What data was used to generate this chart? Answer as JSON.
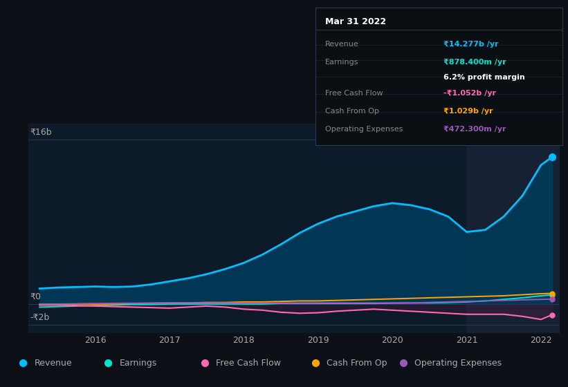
{
  "bg_color": "#0d1117",
  "chart_bg": "#0d1a2a",
  "text_color": "#aaaaaa",
  "years": [
    2015.25,
    2015.5,
    2015.75,
    2016.0,
    2016.25,
    2016.5,
    2016.75,
    2017.0,
    2017.25,
    2017.5,
    2017.75,
    2018.0,
    2018.25,
    2018.5,
    2018.75,
    2019.0,
    2019.25,
    2019.5,
    2019.75,
    2020.0,
    2020.25,
    2020.5,
    2020.75,
    2021.0,
    2021.25,
    2021.5,
    2021.75,
    2022.0,
    2022.15
  ],
  "revenue": [
    1.5,
    1.6,
    1.65,
    1.7,
    1.65,
    1.7,
    1.9,
    2.2,
    2.5,
    2.9,
    3.4,
    4.0,
    4.8,
    5.8,
    6.9,
    7.8,
    8.5,
    9.0,
    9.5,
    9.8,
    9.6,
    9.2,
    8.5,
    7.0,
    7.2,
    8.5,
    10.5,
    13.5,
    14.277
  ],
  "earnings": [
    -0.3,
    -0.25,
    -0.2,
    -0.15,
    -0.1,
    -0.05,
    -0.05,
    0.0,
    0.0,
    0.0,
    0.0,
    0.0,
    0.0,
    0.05,
    0.05,
    0.05,
    0.05,
    0.05,
    0.05,
    0.08,
    0.1,
    0.1,
    0.15,
    0.2,
    0.3,
    0.45,
    0.6,
    0.8,
    0.878
  ],
  "free_cash_flow": [
    -0.1,
    -0.1,
    -0.15,
    -0.2,
    -0.25,
    -0.3,
    -0.35,
    -0.4,
    -0.3,
    -0.2,
    -0.3,
    -0.5,
    -0.6,
    -0.8,
    -0.9,
    -0.85,
    -0.7,
    -0.6,
    -0.5,
    -0.6,
    -0.7,
    -0.8,
    -0.9,
    -1.0,
    -1.0,
    -1.0,
    -1.2,
    -1.5,
    -1.052
  ],
  "cash_from_op": [
    -0.05,
    -0.02,
    0.0,
    0.0,
    0.02,
    0.05,
    0.08,
    0.1,
    0.1,
    0.15,
    0.15,
    0.2,
    0.2,
    0.25,
    0.3,
    0.3,
    0.35,
    0.4,
    0.45,
    0.5,
    0.55,
    0.6,
    0.65,
    0.7,
    0.75,
    0.8,
    0.9,
    1.0,
    1.029
  ],
  "operating_expenses": [
    0.0,
    0.0,
    0.02,
    0.05,
    0.07,
    0.08,
    0.09,
    0.1,
    0.1,
    0.1,
    0.1,
    0.1,
    0.1,
    0.1,
    0.1,
    0.1,
    0.1,
    0.1,
    0.1,
    0.1,
    0.1,
    0.15,
    0.2,
    0.25,
    0.3,
    0.35,
    0.4,
    0.45,
    0.4723
  ],
  "revenue_color": "#00bfff",
  "earnings_color": "#00e5cc",
  "free_cash_flow_color": "#ff69b4",
  "cash_from_op_color": "#ffa500",
  "operating_expenses_color": "#9b59b6",
  "highlight_x_start": 2021.0,
  "highlight_x_end": 2022.25,
  "ylabel_16b": "₹16b",
  "ylabel_0": "₹0",
  "ylabel_neg2b": "-₹2b",
  "x_ticks": [
    2016,
    2017,
    2018,
    2019,
    2020,
    2021,
    2022
  ],
  "ylim": [
    -2.8,
    17.5
  ],
  "xlim": [
    2015.1,
    2022.25
  ],
  "tooltip_title": "Mar 31 2022",
  "tooltip_rows": [
    {
      "label": "Revenue",
      "value": "₹14.277b /yr",
      "value_color": "#00bfff"
    },
    {
      "label": "Earnings",
      "value": "₹878.400m /yr",
      "value_color": "#00e5cc"
    },
    {
      "label": "",
      "value": "6.2% profit margin",
      "value_color": "#ffffff"
    },
    {
      "label": "Free Cash Flow",
      "value": "-₹1.052b /yr",
      "value_color": "#ff69b4"
    },
    {
      "label": "Cash From Op",
      "value": "₹1.029b /yr",
      "value_color": "#ffa500"
    },
    {
      "label": "Operating Expenses",
      "value": "₹472.300m /yr",
      "value_color": "#9b59b6"
    }
  ],
  "legend_items": [
    {
      "label": "Revenue",
      "color": "#00bfff"
    },
    {
      "label": "Earnings",
      "color": "#00e5cc"
    },
    {
      "label": "Free Cash Flow",
      "color": "#ff69b4"
    },
    {
      "label": "Cash From Op",
      "color": "#ffa500"
    },
    {
      "label": "Operating Expenses",
      "color": "#9b59b6"
    }
  ]
}
